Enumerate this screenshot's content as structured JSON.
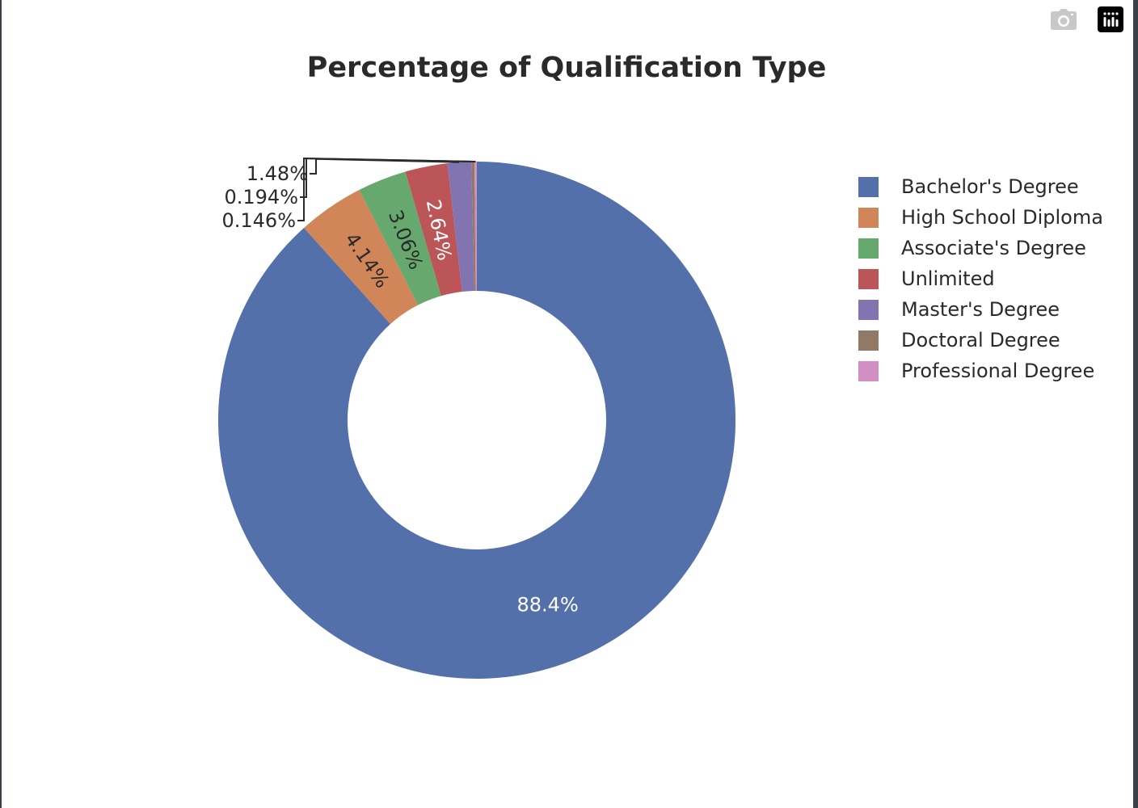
{
  "chart_data": {
    "type": "pie",
    "hole": 0.5,
    "title": "Percentage of Qualification Type",
    "slices": [
      {
        "label": "Bachelor's Degree",
        "value": 88.4,
        "text": "88.4%",
        "color": "#5470ab"
      },
      {
        "label": "High School Diploma",
        "value": 4.14,
        "text": "4.14%",
        "color": "#d1865a"
      },
      {
        "label": "Associate's Degree",
        "value": 3.06,
        "text": "3.06%",
        "color": "#66a86d"
      },
      {
        "label": "Unlimited",
        "value": 2.64,
        "text": "2.64%",
        "color": "#bb5558"
      },
      {
        "label": "Master's Degree",
        "value": 1.48,
        "text": "1.48%",
        "color": "#8174b1"
      },
      {
        "label": "Doctoral Degree",
        "value": 0.194,
        "text": "0.194%",
        "color": "#927966"
      },
      {
        "label": "Professional Degree",
        "value": 0.146,
        "text": "0.146%",
        "color": "#d18fc4"
      }
    ],
    "legend_position": "right"
  },
  "modebar": {
    "camera_icon": "camera-icon",
    "logo_icon": "plotly-logo-icon"
  }
}
